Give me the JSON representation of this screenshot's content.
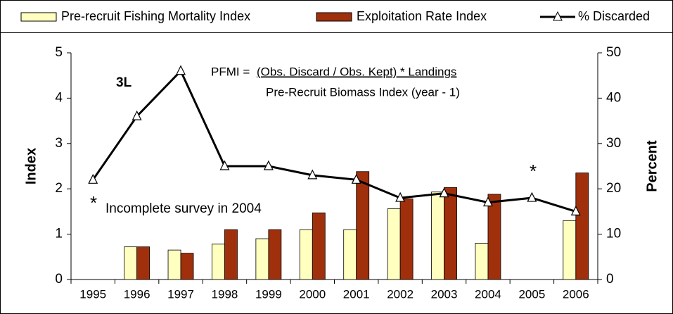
{
  "chart_data": {
    "type": "bar_line",
    "categories": [
      "1995",
      "1996",
      "1997",
      "1998",
      "1999",
      "2000",
      "2001",
      "2002",
      "2003",
      "2004",
      "2005",
      "2006"
    ],
    "series": [
      {
        "name": "Pre-recruit Fishing Mortality Index",
        "type": "bar",
        "color": "#ffffc0",
        "values": [
          null,
          0.72,
          0.65,
          0.78,
          0.9,
          1.1,
          1.1,
          1.56,
          1.93,
          0.8,
          null,
          1.3
        ]
      },
      {
        "name": "Exploitation Rate Index",
        "type": "bar",
        "color": "#a0300c",
        "values": [
          null,
          0.72,
          0.58,
          1.1,
          1.1,
          1.47,
          2.38,
          1.78,
          2.03,
          1.88,
          null,
          2.35
        ]
      },
      {
        "name": "% Discarded",
        "type": "line",
        "axis": "y2",
        "color": "#000000",
        "values": [
          22,
          36,
          46,
          25,
          25,
          23,
          22,
          18,
          19,
          17,
          18,
          15
        ]
      }
    ],
    "y_label": "Index",
    "y2_label": "Percent",
    "ylim": [
      0,
      5
    ],
    "yticks": [
      0,
      1,
      2,
      3,
      4,
      5
    ],
    "y2lim": [
      0,
      50
    ],
    "y2ticks": [
      0,
      10,
      20,
      30,
      40,
      50
    ],
    "legend": "top",
    "annotations": {
      "region": "3L",
      "formula_lhs": "PFMI =",
      "formula_numerator": "(Obs. Discard / Obs. Kept) * Landings",
      "formula_denominator": "Pre-Recruit Biomass Index (year - 1)",
      "footnote_marker": "*",
      "footnote": "Incomplete survey in 2004",
      "marker_2005": "*"
    }
  }
}
